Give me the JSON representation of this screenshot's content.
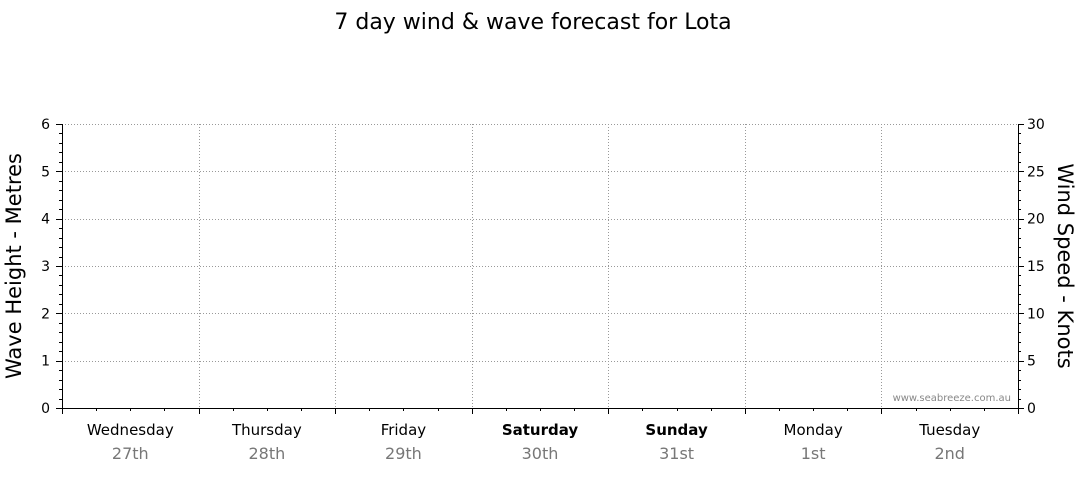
{
  "chart_data": {
    "type": "line",
    "title": "7 day wind & wave forecast for Lota",
    "ylabel_left": "Wave Height - Metres",
    "ylabel_right": "Wind Speed - Knots",
    "ylim_left": [
      0,
      6
    ],
    "ylim_right": [
      0,
      30
    ],
    "yticks_left": [
      "0",
      "1",
      "2",
      "3",
      "4",
      "5",
      "6"
    ],
    "yticks_right": [
      "0",
      "5",
      "10",
      "15",
      "20",
      "25",
      "30"
    ],
    "grid": true,
    "days": [
      {
        "name": "Wednesday",
        "date": "27th",
        "weekend": false
      },
      {
        "name": "Thursday",
        "date": "28th",
        "weekend": false
      },
      {
        "name": "Friday",
        "date": "29th",
        "weekend": false
      },
      {
        "name": "Saturday",
        "date": "30th",
        "weekend": true
      },
      {
        "name": "Sunday",
        "date": "31st",
        "weekend": true
      },
      {
        "name": "Monday",
        "date": "1st",
        "weekend": false
      },
      {
        "name": "Tuesday",
        "date": "2nd",
        "weekend": false
      }
    ],
    "series": [],
    "watermark": "www.seabreeze.com.au"
  }
}
